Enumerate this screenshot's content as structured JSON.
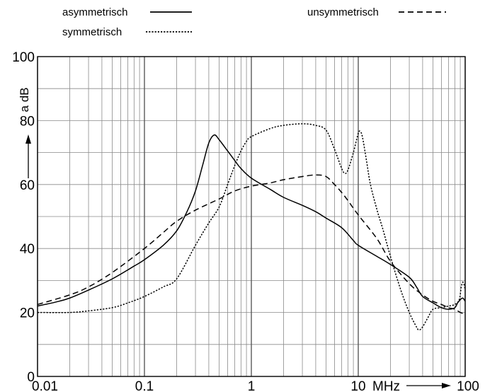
{
  "chart_data": {
    "type": "line",
    "x_scale": "log",
    "xlim": [
      0.01,
      100
    ],
    "ylim": [
      0,
      100
    ],
    "grid": true,
    "ylabel": "a dB",
    "x_unit": "MHz",
    "x_tick_labels": [
      {
        "x": 0.01,
        "label": "0.01"
      },
      {
        "x": 0.1,
        "label": "0.1"
      },
      {
        "x": 1,
        "label": "1"
      },
      {
        "x": 10,
        "label": "10"
      },
      {
        "x": 100,
        "label": "100"
      }
    ],
    "y_tick_labels": [
      {
        "y": 0,
        "label": "0"
      },
      {
        "y": 20,
        "label": "20"
      },
      {
        "y": 40,
        "label": "40"
      },
      {
        "y": 60,
        "label": "60"
      },
      {
        "y": 80,
        "label": "80"
      },
      {
        "y": 100,
        "label": "100"
      }
    ],
    "legend": {
      "placement": "top",
      "entries": [
        {
          "name": "asymmetrisch",
          "style": "solid"
        },
        {
          "name": "symmetrisch",
          "style": "dotted"
        },
        {
          "name": "unsymmetrisch",
          "style": "dashed"
        }
      ]
    },
    "series": [
      {
        "name": "asymmetrisch",
        "style": "solid",
        "color": "#000000",
        "points": [
          [
            0.01,
            22
          ],
          [
            0.015,
            23.3
          ],
          [
            0.02,
            24.5
          ],
          [
            0.03,
            27
          ],
          [
            0.05,
            30.5
          ],
          [
            0.08,
            34.5
          ],
          [
            0.1,
            36.5
          ],
          [
            0.15,
            41
          ],
          [
            0.2,
            45.5
          ],
          [
            0.25,
            51.5
          ],
          [
            0.3,
            58
          ],
          [
            0.35,
            66
          ],
          [
            0.4,
            73
          ],
          [
            0.45,
            75.5
          ],
          [
            0.5,
            74
          ],
          [
            0.6,
            70.5
          ],
          [
            0.7,
            67.5
          ],
          [
            0.8,
            65
          ],
          [
            1,
            62
          ],
          [
            1.5,
            58.5
          ],
          [
            2,
            56
          ],
          [
            3,
            53.5
          ],
          [
            4,
            51.5
          ],
          [
            5,
            49.5
          ],
          [
            7,
            46.5
          ],
          [
            9,
            42.5
          ],
          [
            10,
            41
          ],
          [
            15,
            37.5
          ],
          [
            20,
            35
          ],
          [
            30,
            31
          ],
          [
            35,
            28
          ],
          [
            40,
            25
          ],
          [
            50,
            23
          ],
          [
            60,
            21.5
          ],
          [
            70,
            21
          ],
          [
            80,
            21.5
          ],
          [
            85,
            23
          ],
          [
            90,
            24
          ],
          [
            95,
            24.5
          ],
          [
            100,
            23.5
          ]
        ]
      },
      {
        "name": "symmetrisch",
        "style": "dotted",
        "color": "#000000",
        "points": [
          [
            0.01,
            20
          ],
          [
            0.02,
            20
          ],
          [
            0.03,
            20.5
          ],
          [
            0.05,
            21.5
          ],
          [
            0.07,
            23
          ],
          [
            0.1,
            25
          ],
          [
            0.15,
            28
          ],
          [
            0.2,
            30.5
          ],
          [
            0.3,
            41
          ],
          [
            0.4,
            48
          ],
          [
            0.5,
            53
          ],
          [
            0.6,
            60
          ],
          [
            0.7,
            66
          ],
          [
            0.8,
            70.5
          ],
          [
            0.9,
            73.5
          ],
          [
            1,
            75
          ],
          [
            1.5,
            77.5
          ],
          [
            2,
            78.5
          ],
          [
            3,
            79
          ],
          [
            4,
            78.5
          ],
          [
            5,
            77
          ],
          [
            6,
            71
          ],
          [
            7,
            65
          ],
          [
            7.5,
            63.5
          ],
          [
            8,
            64.5
          ],
          [
            9,
            70
          ],
          [
            10,
            76
          ],
          [
            10.5,
            76.5
          ],
          [
            11,
            74.5
          ],
          [
            12,
            67
          ],
          [
            13,
            60
          ],
          [
            15,
            52
          ],
          [
            17,
            46
          ],
          [
            20,
            37.5
          ],
          [
            25,
            27
          ],
          [
            30,
            20
          ],
          [
            35,
            15.5
          ],
          [
            37,
            14.5
          ],
          [
            40,
            15.5
          ],
          [
            45,
            18.5
          ],
          [
            50,
            21
          ],
          [
            60,
            21.5
          ],
          [
            70,
            22
          ],
          [
            80,
            22.5
          ],
          [
            88,
            24
          ],
          [
            92,
            28
          ],
          [
            95,
            29.5
          ],
          [
            98,
            28.5
          ],
          [
            100,
            27
          ]
        ]
      },
      {
        "name": "unsymmetrisch",
        "style": "dashed",
        "color": "#000000",
        "points": [
          [
            0.01,
            22.5
          ],
          [
            0.02,
            25.5
          ],
          [
            0.03,
            28
          ],
          [
            0.05,
            32.5
          ],
          [
            0.1,
            40
          ],
          [
            0.15,
            45
          ],
          [
            0.2,
            48.5
          ],
          [
            0.3,
            52
          ],
          [
            0.5,
            55.5
          ],
          [
            0.7,
            58
          ],
          [
            1,
            59.5
          ],
          [
            1.5,
            60.5
          ],
          [
            2,
            61.5
          ],
          [
            3,
            62.5
          ],
          [
            4,
            63
          ],
          [
            5,
            62.5
          ],
          [
            6,
            60
          ],
          [
            7,
            57.5
          ],
          [
            8,
            55
          ],
          [
            10,
            50.5
          ],
          [
            15,
            43
          ],
          [
            20,
            36
          ],
          [
            30,
            29
          ],
          [
            40,
            25.5
          ],
          [
            50,
            23.5
          ],
          [
            60,
            22.5
          ],
          [
            70,
            21.5
          ],
          [
            80,
            21
          ],
          [
            90,
            20
          ],
          [
            100,
            19.5
          ]
        ]
      }
    ]
  }
}
